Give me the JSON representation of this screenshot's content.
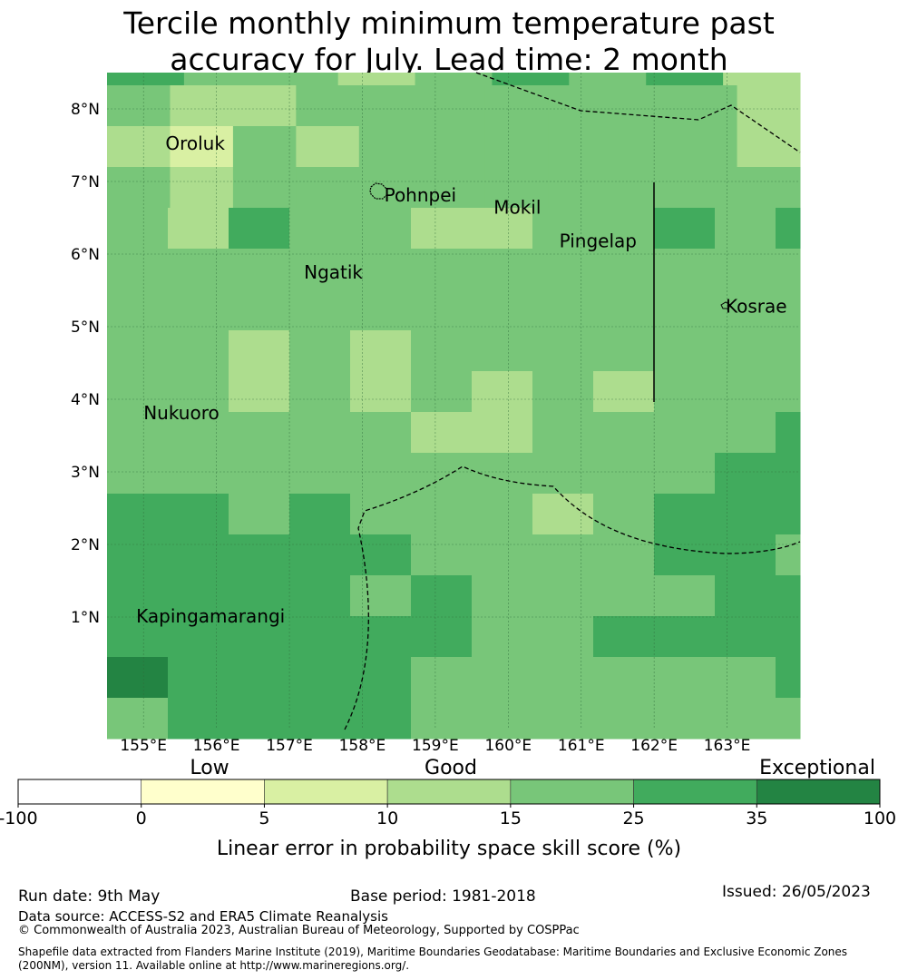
{
  "title": {
    "line1": "Tercile monthly minimum temperature past",
    "line2": "accuracy for July. Lead time: 2 month"
  },
  "map": {
    "lon_range": [
      154.5,
      164.0
    ],
    "lat_range": [
      -0.55,
      8.5
    ],
    "lon_ticks": [
      "155°E",
      "156°E",
      "157°E",
      "158°E",
      "159°E",
      "160°E",
      "161°E",
      "162°E",
      "163°E"
    ],
    "lat_ticks": [
      "1°N",
      "2°N",
      "3°N",
      "4°N",
      "5°N",
      "6°N",
      "7°N",
      "8°N"
    ],
    "places": [
      {
        "name": "Oroluk",
        "lon": 155.3,
        "lat": 7.56
      },
      {
        "name": "Pohnpei",
        "lon": 158.3,
        "lat": 6.85
      },
      {
        "name": "Mokil",
        "lon": 159.8,
        "lat": 6.68
      },
      {
        "name": "Pingelap",
        "lon": 160.7,
        "lat": 6.22
      },
      {
        "name": "Ngatik",
        "lon": 157.2,
        "lat": 5.79
      },
      {
        "name": "Kosrae",
        "lon": 162.98,
        "lat": 5.32
      },
      {
        "name": "Nukuoro",
        "lon": 155.0,
        "lat": 3.85
      },
      {
        "name": "Kapingamarangi",
        "lon": 154.9,
        "lat": 1.05
      }
    ],
    "skill_grid": [
      [
        3,
        2,
        2,
        1,
        2,
        3,
        2,
        3,
        1
      ],
      [
        2,
        1,
        1,
        2,
        2,
        2,
        2,
        2,
        2,
        2,
        1
      ],
      [
        1,
        0,
        2,
        1,
        2,
        2,
        2,
        2,
        2,
        2,
        1
      ],
      [
        2,
        1,
        2,
        2,
        2,
        2,
        2,
        2,
        2,
        2,
        2
      ],
      [
        2,
        1,
        3,
        2,
        2,
        1,
        1,
        2,
        2,
        3,
        2,
        3
      ],
      [
        2,
        2,
        2,
        2,
        2,
        2,
        2,
        2,
        2,
        2,
        2,
        2
      ],
      [
        2,
        2,
        2,
        2,
        2,
        2,
        2,
        2,
        2,
        2,
        2,
        2
      ],
      [
        2,
        2,
        1,
        2,
        1,
        2,
        2,
        2,
        2,
        2,
        2,
        2
      ],
      [
        2,
        2,
        1,
        2,
        1,
        2,
        1,
        2,
        1,
        2,
        2,
        2
      ],
      [
        2,
        2,
        2,
        2,
        2,
        1,
        1,
        2,
        2,
        2,
        2,
        3
      ],
      [
        2,
        2,
        2,
        2,
        2,
        2,
        2,
        2,
        2,
        2,
        3,
        3
      ],
      [
        3,
        3,
        2,
        3,
        2,
        2,
        2,
        1,
        2,
        3,
        3,
        3
      ],
      [
        3,
        3,
        3,
        3,
        3,
        2,
        2,
        2,
        2,
        3,
        3,
        2
      ],
      [
        3,
        3,
        3,
        3,
        2,
        3,
        2,
        2,
        2,
        2,
        3,
        3
      ],
      [
        3,
        3,
        3,
        3,
        3,
        3,
        2,
        2,
        3,
        3,
        3,
        3
      ],
      [
        4,
        3,
        3,
        3,
        3,
        2,
        2,
        2,
        2,
        2,
        2,
        3
      ],
      [
        2,
        3,
        3,
        3,
        3,
        2,
        2,
        2,
        2,
        2,
        2,
        2
      ]
    ]
  },
  "legend": {
    "categories": [
      "Low",
      "Good",
      "Exceptional"
    ],
    "bins": [
      "-100",
      "0",
      "5",
      "10",
      "15",
      "25",
      "35",
      "100"
    ],
    "colors": [
      "#ffffff",
      "#ffffcc",
      "#d9f0a3",
      "#addd8e",
      "#78c679",
      "#41ab5d",
      "#238443"
    ],
    "label": "Linear error in probability space skill score (%)"
  },
  "footer": {
    "run_date": "Run date: 9th May",
    "base_period": "Base period: 1981-2018",
    "issued": "Issued: 26/05/2023",
    "data_source": "Data source: ACCESS-S2 and ERA5 Climate Reanalysis",
    "copyright": "© Commonwealth of Australia 2023, Australian Bureau of Meteorology, Supported by COSPPac",
    "shapefile_1": "Shapefile data extracted from Flanders Marine Institute (2019), Maritime Boundaries Geodatabase: Maritime Boundaries and Exclusive Economic Zones",
    "shapefile_2": "(200NM), version 11. Available online at http://www.marineregions.org/."
  }
}
